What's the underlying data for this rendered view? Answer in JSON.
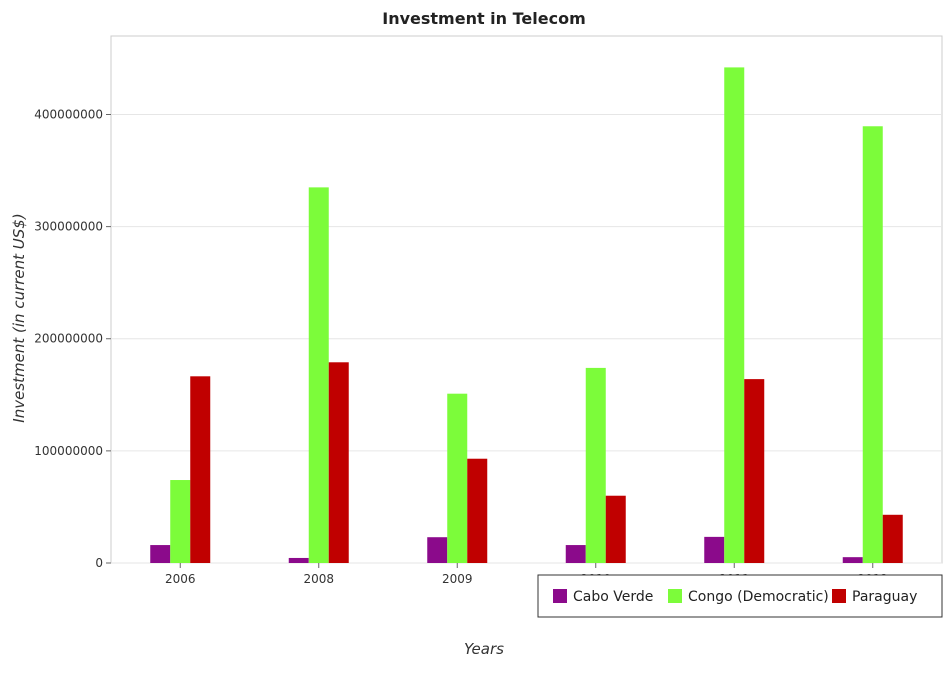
{
  "chart_data": {
    "type": "bar",
    "title": "Investment in Telecom",
    "xlabel": "Years",
    "ylabel": "Investment (in current US$)",
    "categories": [
      "2006",
      "2008",
      "2009",
      "2010",
      "2011",
      "2012"
    ],
    "ylim": [
      0,
      470000000
    ],
    "yticks": [
      0,
      100000000,
      200000000,
      300000000,
      400000000
    ],
    "ytick_labels": [
      "0",
      "100000000",
      "200000000",
      "300000000",
      "400000000"
    ],
    "series": [
      {
        "name": "Cabo Verde",
        "color": "#8B0A8B",
        "values": [
          16000000,
          4500000,
          23000000,
          16000000,
          23300000,
          5200000
        ]
      },
      {
        "name": "Congo (Democratic)",
        "color": "#7CFC3A",
        "values": [
          74000000,
          335000000,
          151000000,
          174000000,
          442000000,
          389500000
        ]
      },
      {
        "name": "Paraguay",
        "color": "#C00000",
        "values": [
          166500000,
          179000000,
          93000000,
          60000000,
          164000000,
          43000000
        ]
      }
    ],
    "grid": true,
    "legend_position": "bottom-right"
  }
}
